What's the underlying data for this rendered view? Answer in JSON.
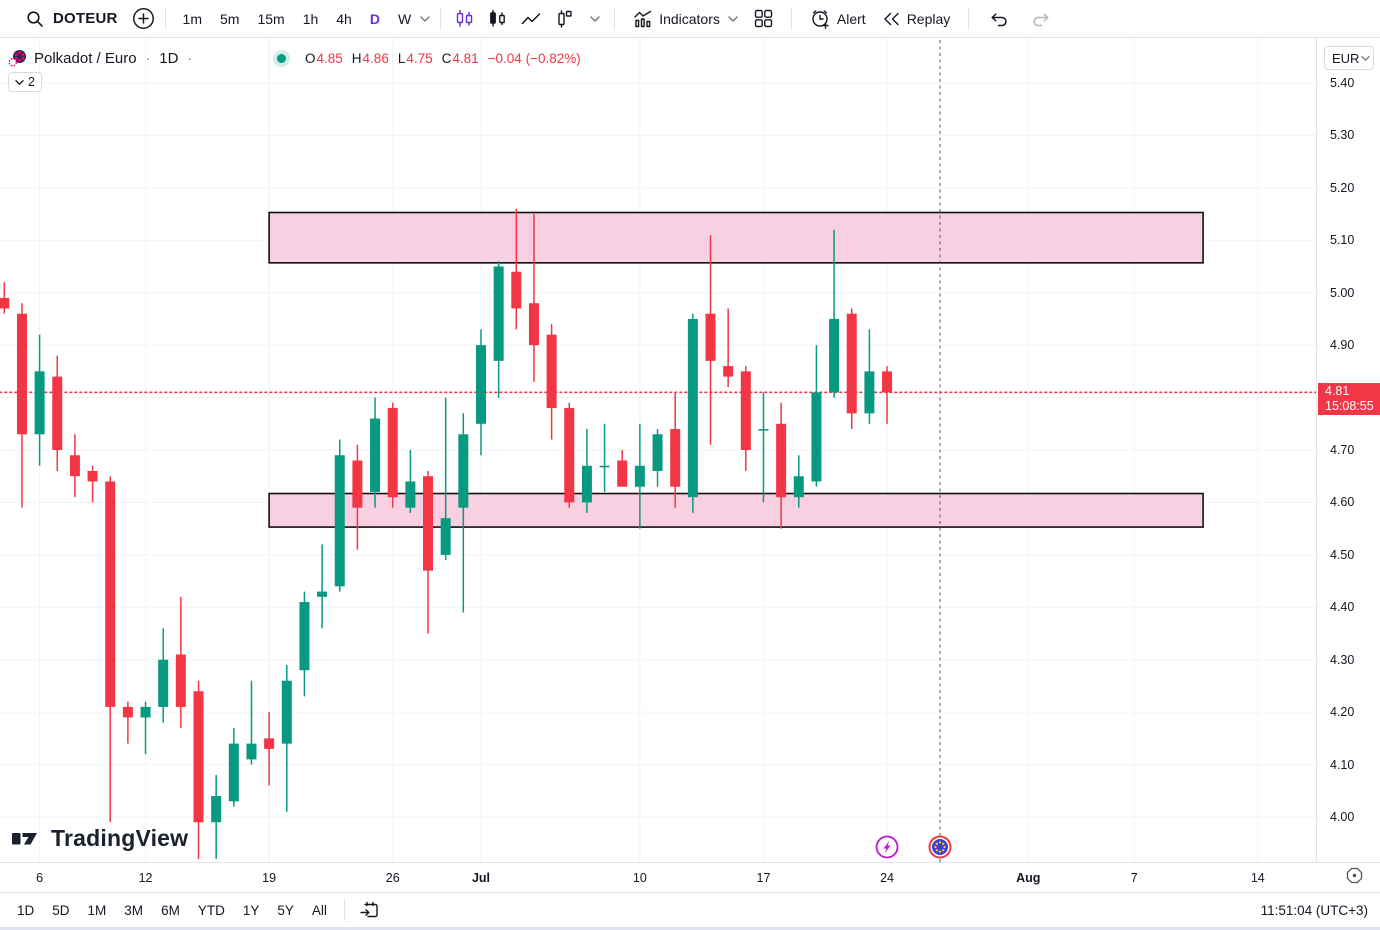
{
  "toolbar_top": {
    "symbol": "DOTEUR",
    "intervals": [
      "1m",
      "5m",
      "15m",
      "1h",
      "4h",
      "D",
      "W"
    ],
    "active_interval": "D",
    "indicators_label": "Indicators",
    "alert_label": "Alert",
    "replay_label": "Replay"
  },
  "legend": {
    "title": "Polkadot / Euro",
    "separator": "·",
    "interval": "1D",
    "ohlc": {
      "labels": {
        "o": "O",
        "h": "H",
        "l": "L",
        "c": "C"
      },
      "o": "4.85",
      "h": "4.86",
      "l": "4.75",
      "c": "4.81",
      "change": "−0.04 (−0.82%)"
    },
    "object_tree_count": "2"
  },
  "price_axis": {
    "currency": "EUR",
    "ticks": [
      "5.40",
      "5.30",
      "5.20",
      "5.10",
      "5.00",
      "4.90",
      "4.70",
      "4.60",
      "4.50",
      "4.40",
      "4.30",
      "4.20",
      "4.10",
      "4.00"
    ],
    "price_label": {
      "price": "4.81",
      "countdown": "15:08:55"
    }
  },
  "time_axis": {
    "ticks": [
      {
        "label": "6",
        "index": 2
      },
      {
        "label": "12",
        "index": 8
      },
      {
        "label": "19",
        "index": 15
      },
      {
        "label": "26",
        "index": 22
      },
      {
        "label": "Jul",
        "index": 27,
        "month": true
      },
      {
        "label": "10",
        "index": 36
      },
      {
        "label": "17",
        "index": 43
      },
      {
        "label": "24",
        "index": 50
      },
      {
        "label": "Aug",
        "index": 58,
        "month": true
      },
      {
        "label": "7",
        "index": 64
      },
      {
        "label": "14",
        "index": 71
      }
    ]
  },
  "toolbar_bottom": {
    "ranges": [
      "1D",
      "5D",
      "1M",
      "3M",
      "6M",
      "YTD",
      "1Y",
      "5Y",
      "All"
    ],
    "clock": "11:51:04 (UTC+3)"
  },
  "watermark": {
    "text": "TradingView"
  },
  "chart_data": {
    "type": "candlestick",
    "symbol": "DOTEUR",
    "interval": "1D",
    "price_range": [
      4.0,
      5.4
    ],
    "price_grid_step": 0.1,
    "current_price": 4.81,
    "columns": [
      "date",
      "open",
      "high",
      "low",
      "close"
    ],
    "candles": [
      [
        "Jun 4",
        4.99,
        5.02,
        4.96,
        4.97
      ],
      [
        "Jun 5",
        4.96,
        4.98,
        4.59,
        4.73
      ],
      [
        "Jun 6",
        4.73,
        4.92,
        4.67,
        4.85
      ],
      [
        "Jun 7",
        4.84,
        4.88,
        4.66,
        4.7
      ],
      [
        "Jun 8",
        4.69,
        4.73,
        4.61,
        4.65
      ],
      [
        "Jun 9",
        4.66,
        4.67,
        4.6,
        4.64
      ],
      [
        "Jun 10",
        4.64,
        4.65,
        3.99,
        4.21
      ],
      [
        "Jun 11",
        4.21,
        4.22,
        4.14,
        4.19
      ],
      [
        "Jun 12",
        4.19,
        4.22,
        4.12,
        4.21
      ],
      [
        "Jun 13",
        4.21,
        4.36,
        4.18,
        4.3
      ],
      [
        "Jun 14",
        4.31,
        4.42,
        4.17,
        4.21
      ],
      [
        "Jun 15",
        4.24,
        4.26,
        3.92,
        3.99
      ],
      [
        "Jun 16",
        3.99,
        4.08,
        3.92,
        4.04
      ],
      [
        "Jun 17",
        4.03,
        4.17,
        4.02,
        4.14
      ],
      [
        "Jun 18",
        4.11,
        4.26,
        4.1,
        4.14
      ],
      [
        "Jun 19",
        4.15,
        4.2,
        4.06,
        4.13
      ],
      [
        "Jun 20",
        4.14,
        4.29,
        4.01,
        4.26
      ],
      [
        "Jun 21",
        4.28,
        4.43,
        4.23,
        4.41
      ],
      [
        "Jun 22",
        4.42,
        4.52,
        4.36,
        4.43
      ],
      [
        "Jun 23",
        4.44,
        4.72,
        4.43,
        4.69
      ],
      [
        "Jun 24",
        4.68,
        4.71,
        4.51,
        4.59
      ],
      [
        "Jun 25",
        4.62,
        4.8,
        4.59,
        4.76
      ],
      [
        "Jun 26",
        4.78,
        4.79,
        4.59,
        4.61
      ],
      [
        "Jun 27",
        4.59,
        4.7,
        4.58,
        4.64
      ],
      [
        "Jun 28",
        4.65,
        4.66,
        4.35,
        4.47
      ],
      [
        "Jun 29",
        4.5,
        4.8,
        4.49,
        4.57
      ],
      [
        "Jun 30",
        4.59,
        4.77,
        4.39,
        4.73
      ],
      [
        "Jul 1",
        4.75,
        4.93,
        4.69,
        4.9
      ],
      [
        "Jul 2",
        4.87,
        5.06,
        4.8,
        5.05
      ],
      [
        "Jul 3",
        5.04,
        5.16,
        4.93,
        4.97
      ],
      [
        "Jul 4",
        4.98,
        5.15,
        4.83,
        4.9
      ],
      [
        "Jul 5",
        4.92,
        4.94,
        4.72,
        4.78
      ],
      [
        "Jul 6",
        4.78,
        4.79,
        4.59,
        4.6
      ],
      [
        "Jul 7",
        4.6,
        4.74,
        4.58,
        4.67
      ],
      [
        "Jul 8",
        4.67,
        4.75,
        4.62,
        4.67
      ],
      [
        "Jul 9",
        4.68,
        4.7,
        4.63,
        4.63
      ],
      [
        "Jul 10",
        4.63,
        4.75,
        4.55,
        4.67
      ],
      [
        "Jul 11",
        4.66,
        4.74,
        4.63,
        4.73
      ],
      [
        "Jul 12",
        4.74,
        4.81,
        4.59,
        4.63
      ],
      [
        "Jul 13",
        4.61,
        4.96,
        4.58,
        4.95
      ],
      [
        "Jul 14",
        4.96,
        5.11,
        4.71,
        4.87
      ],
      [
        "Jul 15",
        4.86,
        4.97,
        4.82,
        4.84
      ],
      [
        "Jul 16",
        4.85,
        4.86,
        4.66,
        4.7
      ],
      [
        "Jul 17",
        4.74,
        4.81,
        4.6,
        4.74
      ],
      [
        "Jul 18",
        4.75,
        4.79,
        4.55,
        4.61
      ],
      [
        "Jul 19",
        4.61,
        4.69,
        4.59,
        4.65
      ],
      [
        "Jul 20",
        4.64,
        4.9,
        4.63,
        4.81
      ],
      [
        "Jul 21",
        4.81,
        5.12,
        4.8,
        4.95
      ],
      [
        "Jul 22",
        4.96,
        4.97,
        4.74,
        4.77
      ],
      [
        "Jul 23",
        4.77,
        4.93,
        4.75,
        4.85
      ],
      [
        "Jul 24",
        4.85,
        4.86,
        4.75,
        4.81
      ]
    ],
    "zones": [
      {
        "name": "supply-zone",
        "price_top": 5.153,
        "price_bottom": 5.057,
        "start_index": 15,
        "end_index": 67.9
      },
      {
        "name": "demand-zone",
        "price_top": 4.617,
        "price_bottom": 4.553,
        "start_index": 15,
        "end_index": 67.9
      }
    ],
    "events": [
      {
        "type": "economic-event-lightning",
        "index": 50,
        "color": "#bc16d4"
      },
      {
        "type": "economic-event-eu",
        "index": 53,
        "color": "#3a3fd1",
        "ring": "#f23645",
        "dashed_line": true
      }
    ],
    "colors": {
      "up": "#089981",
      "down": "#F23645",
      "grid": "#F0F3FA",
      "zone_fill": "#F9D0E1",
      "zone_border": "#111111",
      "price_line": "#F23645",
      "event_line": "#545861",
      "accent": "#6C2BE0"
    }
  }
}
